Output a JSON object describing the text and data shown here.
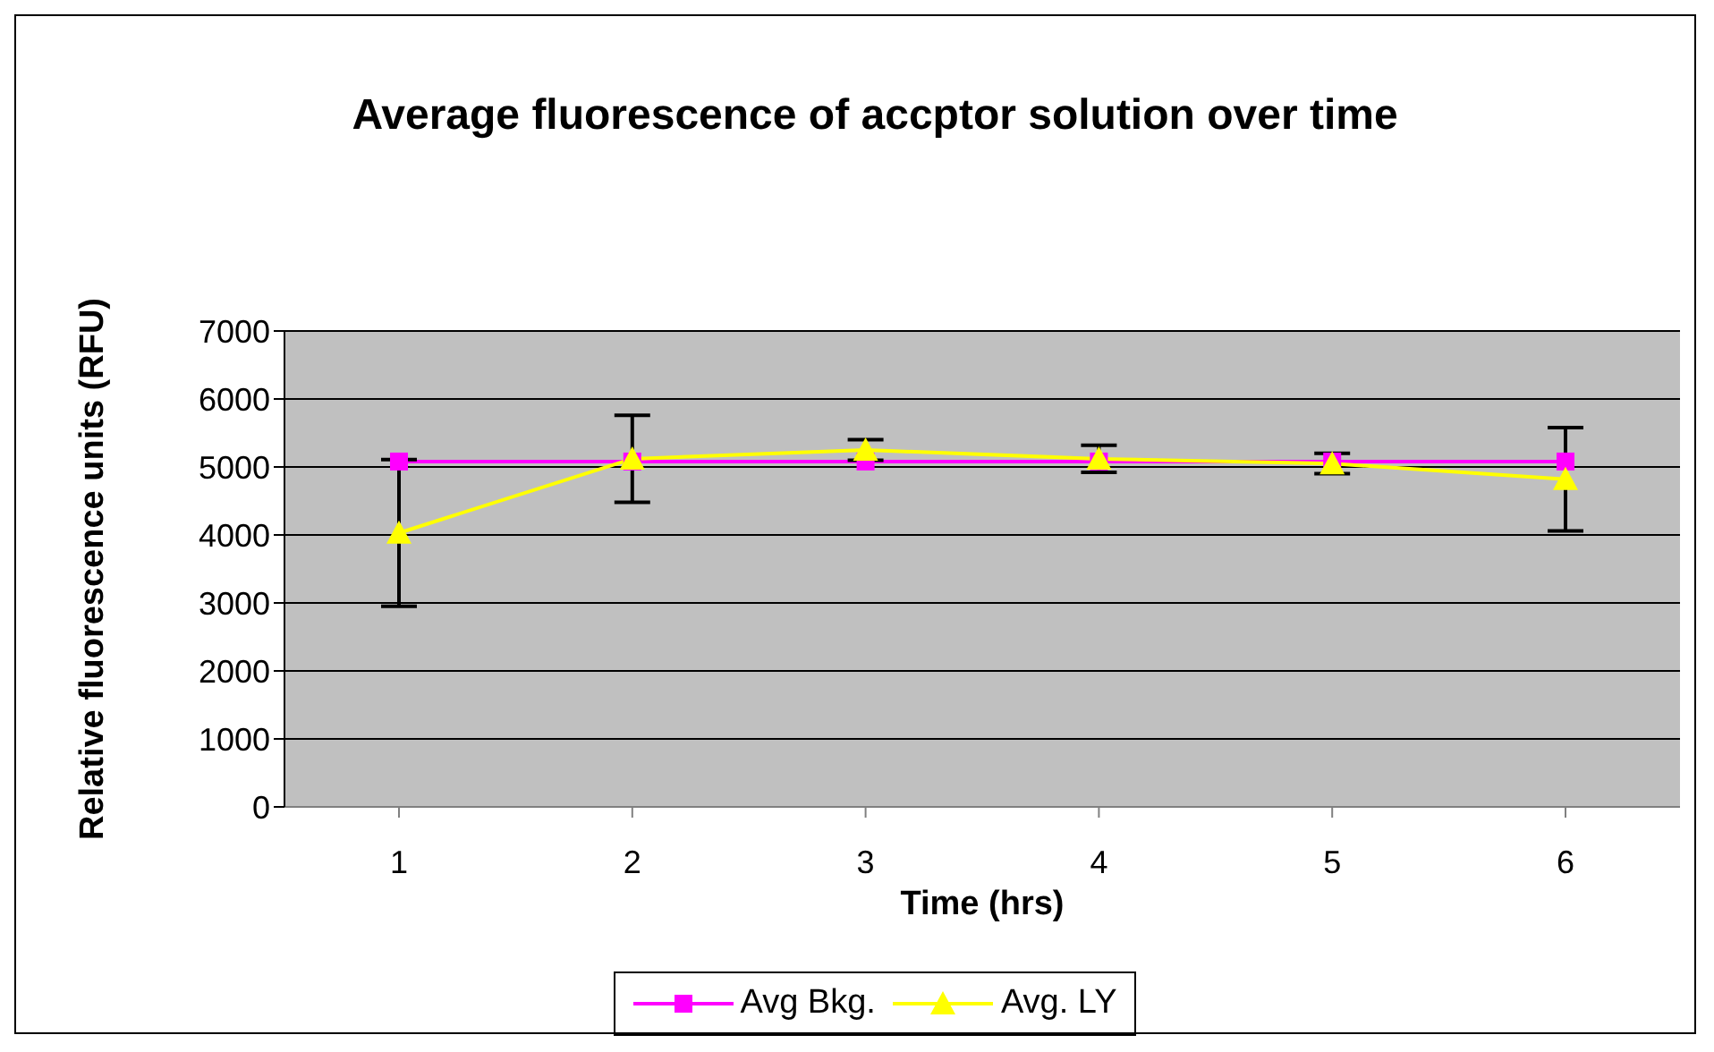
{
  "chart_data": {
    "type": "line",
    "title": "Average fluorescence of accptor solution over time",
    "xlabel": "Time (hrs)",
    "ylabel": "Relative fluorescence units (RFU)",
    "categories": [
      "1",
      "2",
      "3",
      "4",
      "5",
      "6"
    ],
    "series": [
      {
        "name": "Avg Bkg.",
        "color": "#ff00ff",
        "marker": "square",
        "values": [
          5080,
          5080,
          5080,
          5080,
          5080,
          5080
        ]
      },
      {
        "name": "Avg. LY",
        "color": "#ffff00",
        "marker": "triangle",
        "values": [
          4030,
          5120,
          5250,
          5120,
          5050,
          4820
        ],
        "errors": [
          1080,
          640,
          150,
          200,
          150,
          760
        ]
      }
    ],
    "ylim": [
      0,
      7000
    ],
    "yticks": [
      0,
      1000,
      2000,
      3000,
      4000,
      5000,
      6000,
      7000
    ],
    "grid": "y",
    "legend": "bottom"
  }
}
